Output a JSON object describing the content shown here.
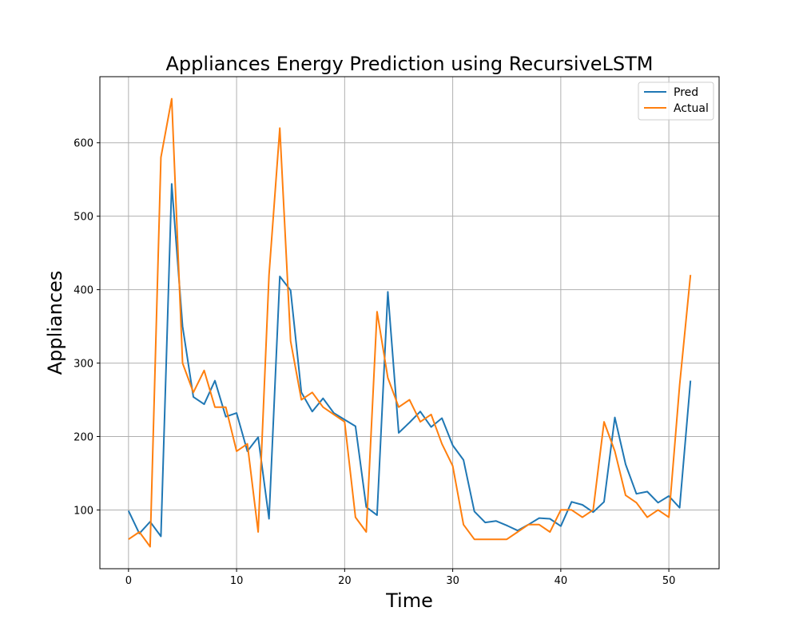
{
  "chart_data": {
    "type": "line",
    "title": "Appliances Energy Prediction using RecursiveLSTM",
    "xlabel": "Time",
    "ylabel": "Appliances",
    "xlim": [
      -2.65,
      54.65
    ],
    "ylim": [
      20,
      690
    ],
    "xticks": [
      0,
      10,
      20,
      30,
      40,
      50
    ],
    "yticks": [
      100,
      200,
      300,
      400,
      500,
      600
    ],
    "grid": true,
    "legend_position": "top-right",
    "x": [
      0,
      1,
      2,
      3,
      4,
      5,
      6,
      7,
      8,
      9,
      10,
      11,
      12,
      13,
      14,
      15,
      16,
      17,
      18,
      19,
      20,
      21,
      22,
      23,
      24,
      25,
      26,
      27,
      28,
      29,
      30,
      31,
      32,
      33,
      34,
      35,
      36,
      37,
      38,
      39,
      40,
      41,
      42,
      43,
      44,
      45,
      46,
      47,
      48,
      49,
      50,
      51,
      52
    ],
    "series": [
      {
        "name": "Pred",
        "color": "#1f77b4",
        "values": [
          99,
          68,
          84,
          64,
          544,
          350,
          254,
          244,
          276,
          227,
          232,
          180,
          199,
          88,
          418,
          399,
          260,
          234,
          252,
          232,
          223,
          214,
          104,
          93,
          397,
          205,
          219,
          234,
          213,
          225,
          188,
          168,
          98,
          83,
          85,
          79,
          72,
          80,
          89,
          88,
          78,
          111,
          107,
          97,
          111,
          226,
          162,
          122,
          125,
          110,
          119,
          103,
          276
        ]
      },
      {
        "name": "Actual",
        "color": "#ff7f0e",
        "values": [
          60,
          70,
          50,
          580,
          660,
          300,
          260,
          290,
          240,
          240,
          180,
          190,
          70,
          420,
          620,
          330,
          250,
          260,
          240,
          230,
          220,
          90,
          70,
          370,
          280,
          240,
          250,
          220,
          230,
          190,
          160,
          80,
          60,
          60,
          60,
          60,
          70,
          80,
          80,
          70,
          100,
          100,
          90,
          100,
          220,
          180,
          120,
          110,
          90,
          100,
          90,
          270,
          420
        ]
      }
    ]
  }
}
